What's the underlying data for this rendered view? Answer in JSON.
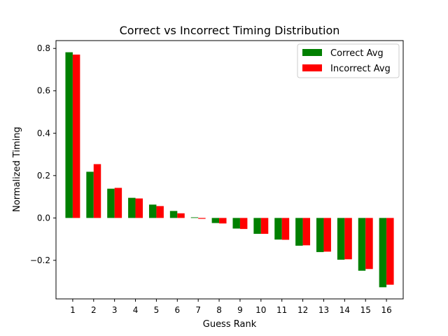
{
  "chart_data": {
    "type": "bar",
    "title": "Correct vs Incorrect Timing Distribution",
    "xlabel": "Guess Rank",
    "ylabel": "Normalized Timing",
    "categories": [
      "1",
      "2",
      "3",
      "4",
      "5",
      "6",
      "7",
      "8",
      "9",
      "10",
      "11",
      "12",
      "13",
      "14",
      "15",
      "16"
    ],
    "series": [
      {
        "name": "Correct Avg",
        "color": "#008000",
        "values": [
          0.782,
          0.218,
          0.138,
          0.095,
          0.063,
          0.033,
          0.003,
          -0.024,
          -0.05,
          -0.075,
          -0.102,
          -0.131,
          -0.161,
          -0.197,
          -0.249,
          -0.327
        ]
      },
      {
        "name": "Incorrect Avg",
        "color": "#ff0000",
        "values": [
          0.771,
          0.254,
          0.142,
          0.092,
          0.056,
          0.022,
          -0.004,
          -0.026,
          -0.052,
          -0.075,
          -0.103,
          -0.129,
          -0.159,
          -0.195,
          -0.241,
          -0.315
        ]
      }
    ],
    "yticks": [
      -0.2,
      0.0,
      0.2,
      0.4,
      0.6,
      0.8
    ],
    "ytick_labels": [
      "−0.2",
      "0.0",
      "0.2",
      "0.4",
      "0.6",
      "0.8"
    ],
    "ylim": [
      -0.382,
      0.837
    ],
    "grid": false,
    "legend_position": "top-right"
  }
}
